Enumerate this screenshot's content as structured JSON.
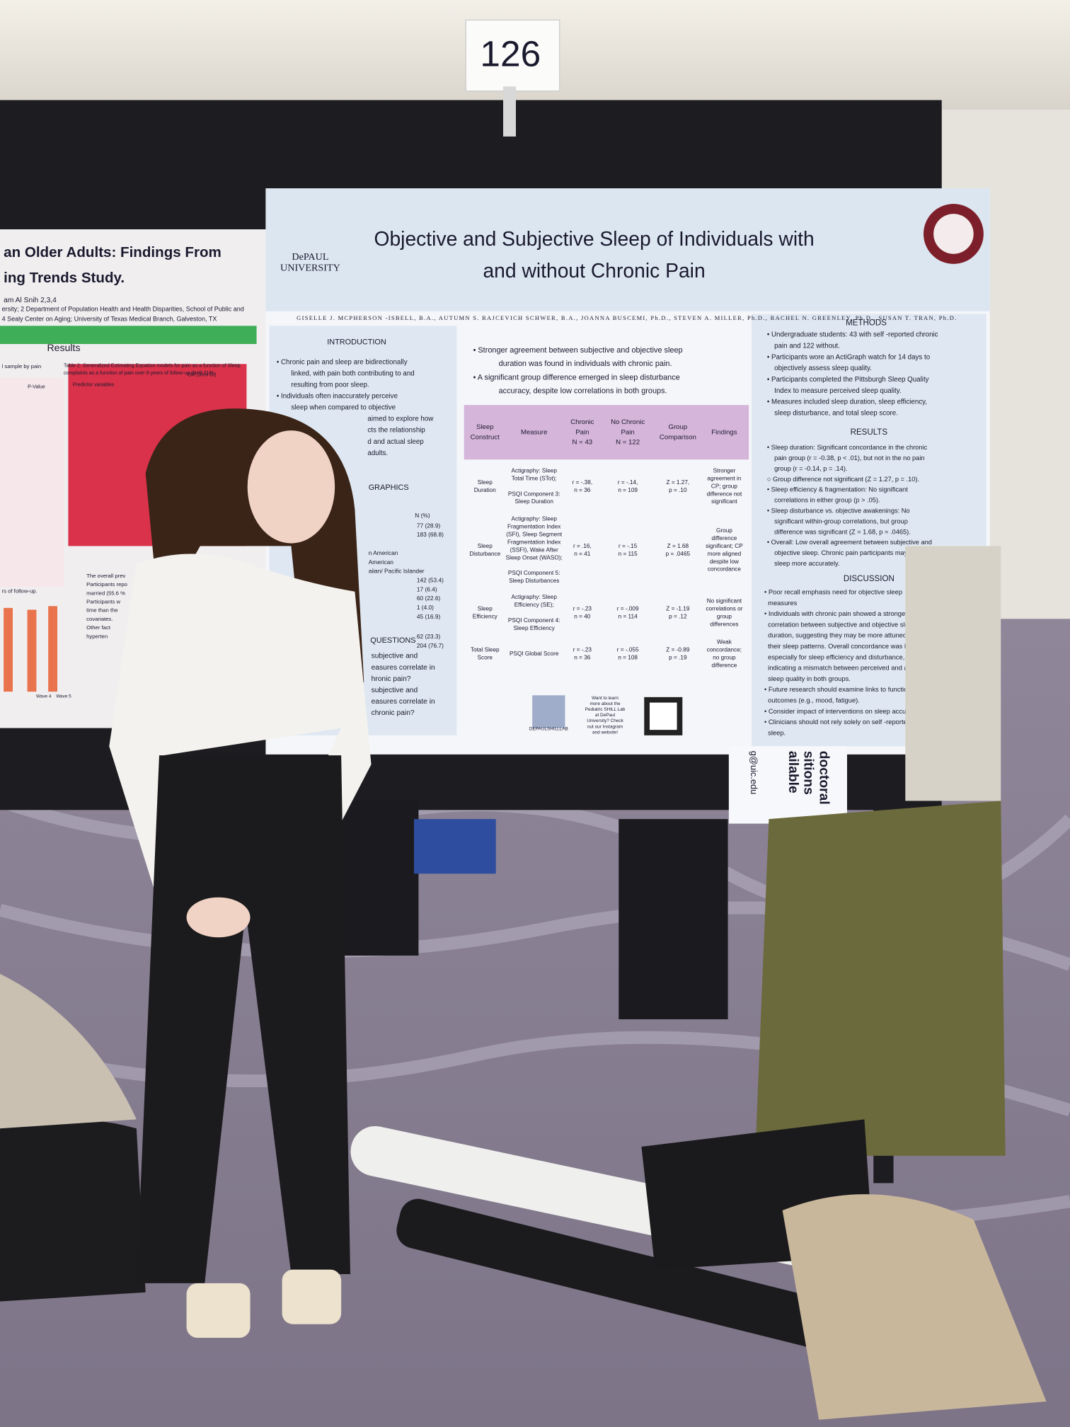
{
  "board_number": "126",
  "left_poster": {
    "title_lines": [
      "an Older Adults: Findings From",
      "ing Trends Study."
    ],
    "author": "am Al Snih 2,3,4",
    "affiliation_lines": [
      "ersity; 2 Department of Population Health and Health Disparities, School of Public and",
      "4 Sealy Center on Aging; University of Texas Medical Branch, Galveston, TX"
    ],
    "section": "Results",
    "sample_note": "l sample by pain",
    "table_caption_lines": [
      "Table 2: Generalized Estimating Equation models for pain as a function of Sleep",
      "complaints as a function of pain over 6-years of follow-up (N=5,716)."
    ],
    "p_value_header": "P-Value",
    "predictor_header": "Predictor variables",
    "or_header": "OR (95% CI)",
    "follow_up_note": "rs of follow-up.",
    "bullets": [
      "The overall prev",
      "Participants repo",
      "married (55.6 %",
      "Participants w",
      "time than the",
      "covariates.",
      "Other fact",
      "hyperten"
    ],
    "wave_labels": [
      "Wave 4",
      "Wave 5"
    ]
  },
  "poster": {
    "institution_lines": [
      "DePAUL",
      "UNIVERSITY"
    ],
    "title_lines": [
      "Objective and Subjective Sleep of Individuals with",
      "and without Chronic Pain"
    ],
    "authors": "GISELLE J. MCPHERSON -ISBELL, B.A., AUTUMN S. RAJCEVICH SCHWER, B.A., JOANNA BUSCEMI, Ph.D., STEVEN A. MILLER, Ph.D., RACHEL N. GREENLEY, Ph.D., SUSAN T. TRAN, Ph.D.",
    "introduction": {
      "heading": "INTRODUCTION",
      "lines": [
        "• Chronic pain and sleep are bidirectionally",
        "linked, with pain both contributing to and",
        "resulting from poor sleep.",
        "• Individuals often inaccurately perceive",
        "sleep when compared to objective",
        "aimed to explore how",
        "cts the relationship",
        "d and actual sleep",
        "adults."
      ]
    },
    "demographics": {
      "heading": "GRAPHICS",
      "column": "N (%)",
      "values": [
        "77 (28.9)",
        "183 (68.8)",
        "142 (53.4)",
        "17 (6.4)",
        "60 (22.6)",
        "1 (4.0)",
        "45 (16.9)",
        "62 (23.3)",
        "204 (76.7)"
      ],
      "labels": [
        "n American",
        "American",
        "aiian/ Pacific Islander"
      ]
    },
    "questions": {
      "heading": "QUESTIONS",
      "lines": [
        "subjective and",
        "easures correlate in",
        "hronic pain?",
        "subjective and",
        "easures correlate in",
        "chronic pain?"
      ]
    },
    "key_findings": [
      "• Stronger agreement between subjective and objective sleep",
      "duration was found in individuals with chronic pain.",
      "• A significant group difference emerged in sleep disturbance",
      "accuracy, despite low correlations in both groups."
    ],
    "table": {
      "headers": [
        [
          "Sleep",
          "Construct"
        ],
        [
          "Measure"
        ],
        [
          "Chronic",
          "Pain",
          "N = 43"
        ],
        [
          "No Chronic",
          "Pain",
          "N = 122"
        ],
        [
          "Group",
          "Comparison"
        ],
        [
          "Findings"
        ]
      ],
      "rows": [
        [
          [
            "Sleep",
            "Duration"
          ],
          [
            "Actigraphy: Sleep",
            "Total Time (STot);",
            "",
            "PSQI Component 3:",
            "Sleep Duration"
          ],
          [
            "r = -.38,",
            "n = 36"
          ],
          [
            "r = -.14,",
            "n = 109"
          ],
          [
            "Z = 1.27,",
            "p = .10"
          ],
          [
            "Stronger",
            "agreement in",
            "CP; group",
            "difference not",
            "significant"
          ]
        ],
        [
          [
            "Sleep",
            "Disturbance"
          ],
          [
            "Actigraphy: Sleep",
            "Fragmentation Index",
            "(SFI), Sleep Segment",
            "Fragmentation Index",
            "(SSFI), Wake After",
            "Sleep Onset (WASO);",
            "",
            "PSQI Component 5:",
            "Sleep Disturbances"
          ],
          [
            "r = .16,",
            "n = 41"
          ],
          [
            "r = -.15",
            "n = 115"
          ],
          [
            "Z = 1.68",
            "p = .0465"
          ],
          [
            "Group",
            "difference",
            "significant; CP",
            "more aligned",
            "despite low",
            "concordance"
          ]
        ],
        [
          [
            "Sleep",
            "Efficiency"
          ],
          [
            "Actigraphy: Sleep",
            "Efficiency (SE);",
            "",
            "PSQI Component 4:",
            "Sleep Efficiency"
          ],
          [
            "r = -.23",
            "n = 40"
          ],
          [
            "r = -.009",
            "n = 114"
          ],
          [
            "Z = -1.19",
            "p = .12"
          ],
          [
            "No significant",
            "correlations or",
            "group",
            "differences"
          ]
        ],
        [
          [
            "Total Sleep",
            "Score"
          ],
          [
            "PSQI Global Score"
          ],
          [
            "r = -.23",
            "n = 36"
          ],
          [
            "r = -.055",
            "n = 108"
          ],
          [
            "Z = -0.89",
            "p = .19"
          ],
          [
            "Weak",
            "concordance;",
            "no group",
            "difference"
          ]
        ]
      ]
    },
    "qr_handle": "DEPAULSHILLLAB",
    "qr_note_lines": [
      "Want to learn",
      "more about the",
      "Pediatric SHILL Lab",
      "at DePaul",
      "University? Check",
      "out our Instagram",
      "and website!"
    ],
    "methods": {
      "heading": "METHODS",
      "lines": [
        "• Undergraduate students: 43 with self -reported chronic",
        "pain and 122 without.",
        "• Participants wore an ActiGraph watch for 14 days to",
        "objectively assess sleep quality.",
        "• Participants completed the Pittsburgh Sleep Quality",
        "Index to measure perceived sleep quality.",
        "• Measures included sleep duration, sleep efficiency,",
        "sleep disturbance, and total sleep score."
      ]
    },
    "results": {
      "heading": "RESULTS",
      "lines": [
        "• Sleep duration: Significant concordance in the chronic",
        "pain group (r = -0.38, p < .01), but not in the no pain",
        "group (r = -0.14, p = .14).",
        "○ Group difference not significant (Z = 1.27, p = .10).",
        "• Sleep efficiency & fragmentation: No significant",
        "correlations in either group (p > .05).",
        "• Sleep disturbance vs. objective awakenings: No",
        "significant within-group correlations, but group",
        "difference was significant (Z = 1.68, p = .0465).",
        "• Overall: Low overall agreement between subjective and",
        "objective sleep. Chronic pain participants may report",
        "sleep more accurately."
      ]
    },
    "discussion": {
      "heading": "DISCUSSION",
      "lines": [
        "• Poor recall emphasis need for objective sleep",
        "measures",
        "• Individuals with chronic pain showed a stronger",
        "correlation between subjective and objective sleep",
        "duration, suggesting they may be more attuned to",
        "their sleep patterns. Overall concordance was low,",
        "especially for sleep efficiency and disturbance,",
        "indicating a mismatch between perceived and actual",
        "sleep quality in both groups.",
        "• Future research should examine links to functional",
        "outcomes (e.g., mood, fatigue).",
        "• Consider impact of interventions on sleep accuracy",
        "• Clinicians should not rely solely on self -reported",
        "sleep."
      ]
    }
  },
  "side_sign": {
    "lines": [
      "doctoral",
      "sitions",
      "ailable"
    ],
    "email": "g@uic.edu"
  }
}
